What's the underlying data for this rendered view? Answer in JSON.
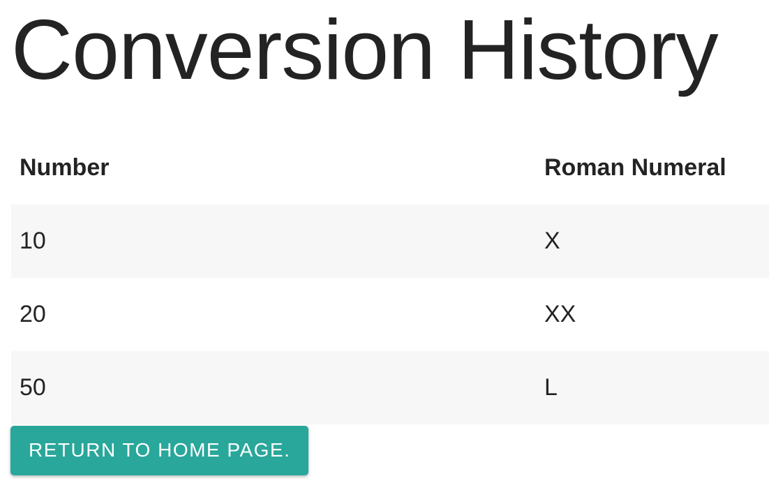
{
  "page": {
    "title": "Conversion History"
  },
  "table": {
    "columns": [
      {
        "label": "Number"
      },
      {
        "label": "Roman Numeral"
      }
    ],
    "rows": [
      {
        "number": "10",
        "roman": "X"
      },
      {
        "number": "20",
        "roman": "XX"
      },
      {
        "number": "50",
        "roman": "L"
      }
    ]
  },
  "button": {
    "label": "RETURN TO HOME PAGE."
  },
  "colors": {
    "accent_teal": "#29a79a",
    "row_stripe": "#f7f7f7",
    "text": "#232323",
    "button_text": "#ffffff",
    "page_background": "#ffffff"
  }
}
